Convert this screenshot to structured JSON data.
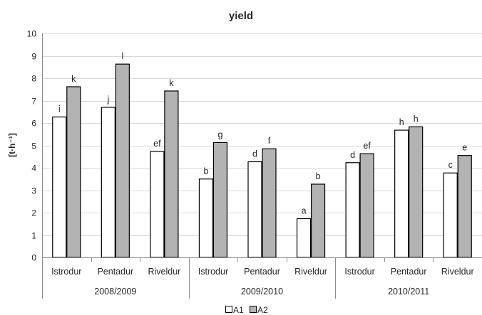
{
  "chart_data": {
    "type": "bar",
    "title": "yield",
    "ylabel": "[t·h⁻¹]",
    "ylim": [
      0,
      10
    ],
    "yticks": [
      0,
      1,
      2,
      3,
      4,
      5,
      6,
      7,
      8,
      9,
      10
    ],
    "grid": "horizontal",
    "legend_position": "bottom",
    "groups": [
      {
        "label": "2008/2009",
        "categories": [
          "Istrodur",
          "Pentadur",
          "Riveldur"
        ]
      },
      {
        "label": "2009/2010",
        "categories": [
          "Istrodur",
          "Pentadur",
          "Riveldur"
        ]
      },
      {
        "label": "2010/2011",
        "categories": [
          "Istrodur",
          "Pentadur",
          "Riveldur"
        ]
      }
    ],
    "series": [
      {
        "name": "A1",
        "color": "#ffffff",
        "values": [
          6.27,
          6.7,
          4.73,
          3.5,
          4.27,
          1.73,
          4.23,
          5.68,
          3.77
        ],
        "labels": [
          "i",
          "j",
          "ef",
          "b",
          "d",
          "a",
          "d",
          "h",
          "c"
        ]
      },
      {
        "name": "A2",
        "color": "#b3b3b3",
        "values": [
          7.62,
          8.63,
          7.43,
          5.13,
          4.85,
          3.27,
          4.63,
          5.83,
          4.55
        ],
        "labels": [
          "k",
          "l",
          "k",
          "g",
          "f",
          "b",
          "ef",
          "h",
          "e"
        ]
      }
    ]
  }
}
